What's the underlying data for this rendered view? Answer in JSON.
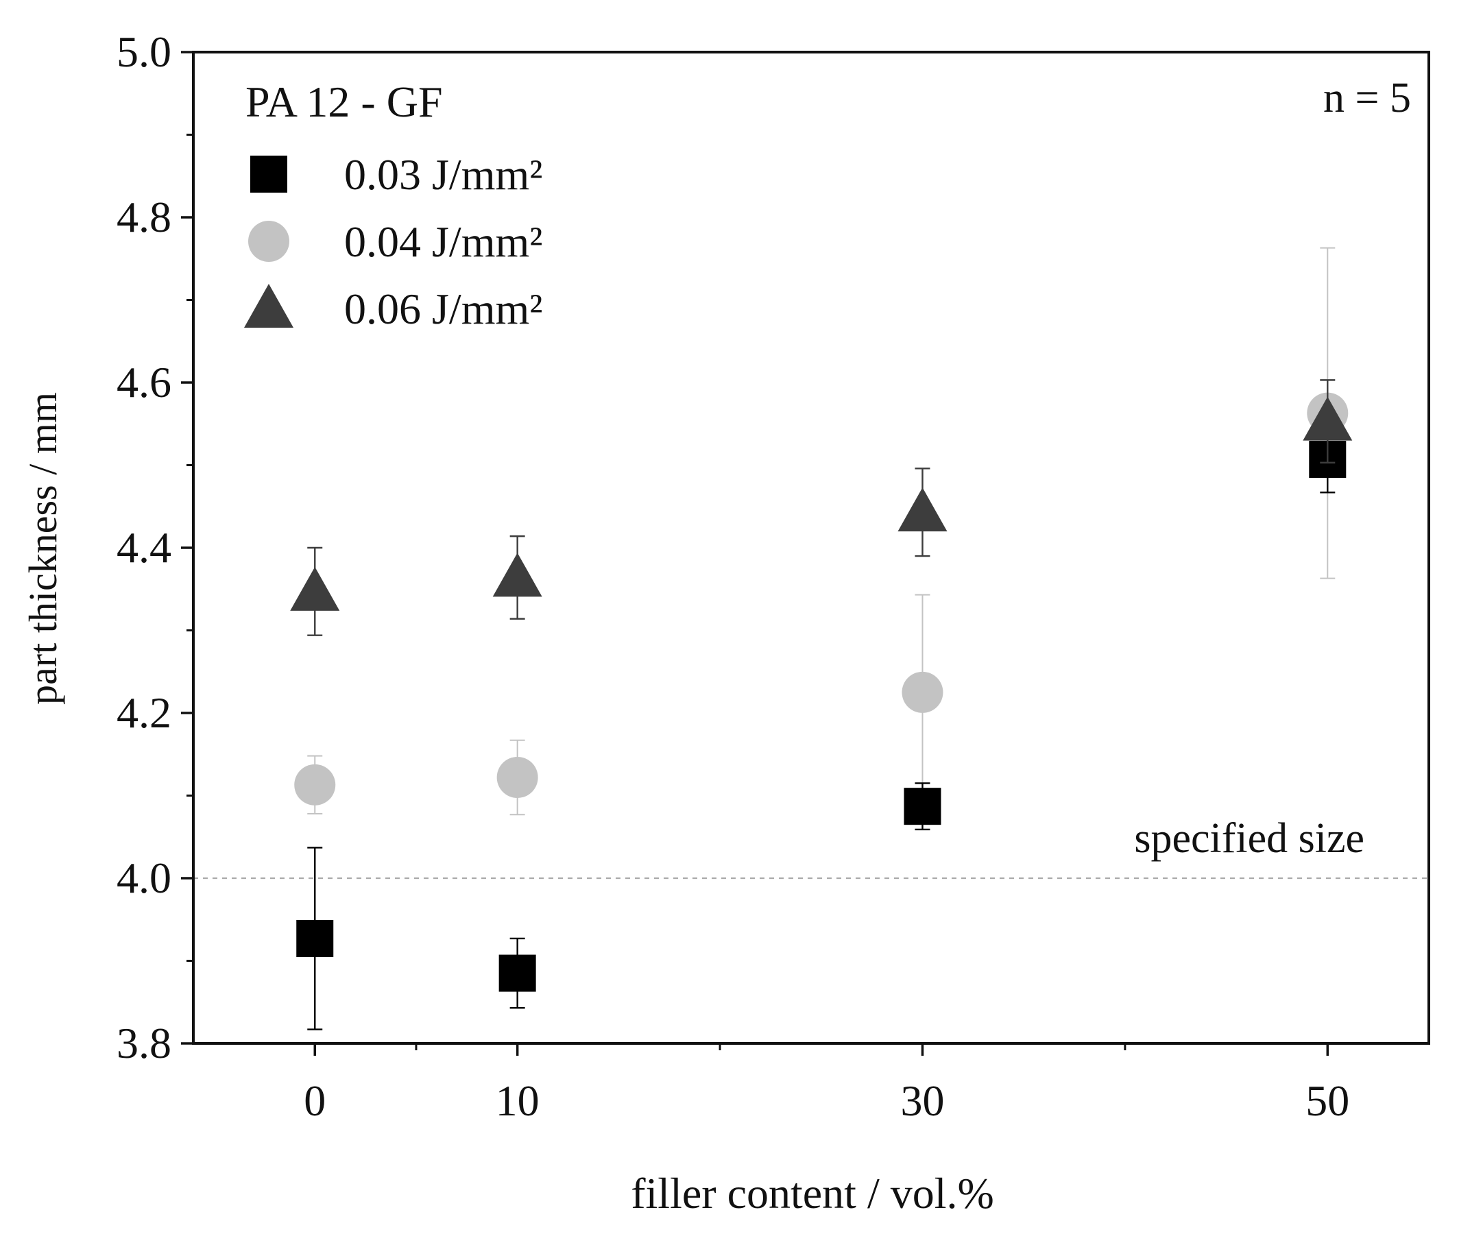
{
  "chart_data": {
    "type": "scatter",
    "title": "",
    "xlabel": "filler content / vol.%",
    "ylabel": "part thickness / mm",
    "xlim": [
      -6,
      55
    ],
    "ylim": [
      3.8,
      5.0
    ],
    "x_ticks": [
      0,
      10,
      30,
      50
    ],
    "x_minor_ticks": [
      5,
      20,
      40
    ],
    "y_ticks": [
      3.8,
      4.0,
      4.2,
      4.4,
      4.6,
      4.8,
      5.0
    ],
    "y_tick_labels": [
      "3.8",
      "4.0",
      "4.2",
      "4.4",
      "4.6",
      "4.8",
      "5.0"
    ],
    "grid": false,
    "legend_title": "PA 12 - GF",
    "legend_position": "top-left",
    "annotation_n": "n = 5",
    "reference_line": {
      "y": 4.0,
      "label": "specified size",
      "color": "#aaaaaa"
    },
    "series": [
      {
        "name": "0.03  J/mm²",
        "marker": "square",
        "color": "#000000",
        "error_color": "#000000",
        "x": [
          0,
          10,
          30,
          50
        ],
        "y": [
          3.927,
          3.885,
          4.087,
          4.507
        ],
        "err": [
          0.11,
          0.042,
          0.028,
          0.04
        ]
      },
      {
        "name": "0.04 J/mm²",
        "marker": "circle",
        "color": "#c3c3c3",
        "error_color": "#c3c3c3",
        "x": [
          0,
          10,
          30,
          50
        ],
        "y": [
          4.113,
          4.122,
          4.225,
          4.563
        ],
        "err": [
          0.035,
          0.045,
          0.118,
          0.2
        ]
      },
      {
        "name": "0.06  J/mm²",
        "marker": "triangle",
        "color": "#3d3d3d",
        "error_color": "#3d3d3d",
        "x": [
          0,
          10,
          30,
          50
        ],
        "y": [
          4.347,
          4.364,
          4.443,
          4.553
        ],
        "err": [
          0.053,
          0.05,
          0.053,
          0.05
        ]
      }
    ]
  }
}
